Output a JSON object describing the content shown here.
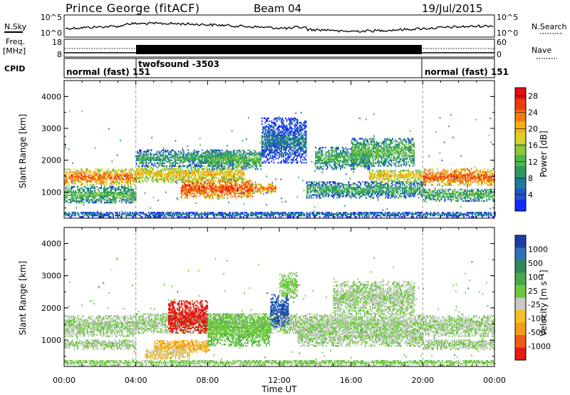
{
  "header": {
    "site": "Prince George (fitACF)",
    "beam": "Beam 04",
    "date": "19/Jul/2015"
  },
  "noise_panel": {
    "left_label": "N.Sky",
    "right_label": "N.Search",
    "left_ticks": [
      "10^5",
      "10^0"
    ],
    "right_ticks": [
      "10^5",
      "10^0"
    ]
  },
  "freq_panel": {
    "left_label_1": "Freq.",
    "left_label_2": "[MHz]",
    "right_label": "Nave",
    "left_ticks": [
      "18",
      "8"
    ],
    "right_ticks": [
      "60",
      "0"
    ]
  },
  "cpid": {
    "label": "CPID",
    "segments": [
      {
        "text": "normal (fast) 151",
        "start_hour": 0,
        "end_hour": 4
      },
      {
        "text": "twofsound -3503",
        "start_hour": 4,
        "end_hour": 20
      },
      {
        "text": "normal (fast) 151",
        "start_hour": 20,
        "end_hour": 24
      }
    ],
    "extra_label": "151"
  },
  "axes": {
    "xlabel": "Time UT",
    "ylabel": "Slant Range [km]",
    "x_ticks": [
      "00:00",
      "04:00",
      "08:00",
      "12:00",
      "16:00",
      "20:00",
      "00:00"
    ],
    "y_ticks": [
      "1000",
      "2000",
      "3000",
      "4000"
    ]
  },
  "colorbars": {
    "power": {
      "label": "Power [dB]",
      "ticks": [
        "4",
        "8",
        "12",
        "16",
        "20",
        "24",
        "28"
      ],
      "colors": [
        "#1428ff",
        "#2255cc",
        "#1e7a9a",
        "#2e9a60",
        "#4bb848",
        "#8ac83a",
        "#d8d22a",
        "#f7b012",
        "#f47c0c",
        "#ee3d0a",
        "#e60f0f"
      ]
    },
    "velocity": {
      "label": "Velocity [m s⁻¹]",
      "ticks": [
        "1000",
        "500",
        "100",
        "25",
        "-25",
        "-100",
        "-500",
        "-1000"
      ],
      "colors": [
        "#1f3da8",
        "#2f72b8",
        "#2e8a5c",
        "#4aa84b",
        "#6cc93e",
        "#c8c8c8",
        "#f2c024",
        "#f59a1a",
        "#ef5a14",
        "#e51a12"
      ]
    }
  },
  "chart_data": [
    {
      "type": "heatmap",
      "title": "Power [dB]",
      "xlabel": "Time UT",
      "ylabel": "Slant Range [km]",
      "xlim": [
        0,
        24
      ],
      "ylim": [
        180,
        4500
      ],
      "colorbar_range": [
        0,
        30
      ],
      "bands": [
        {
          "t0": 0.0,
          "t1": 4.0,
          "r0": 1200,
          "r1": 1700,
          "value": 24
        },
        {
          "t0": 0.0,
          "t1": 4.0,
          "r0": 650,
          "r1": 1150,
          "value": 13
        },
        {
          "t0": 4.0,
          "t1": 10.0,
          "r0": 1300,
          "r1": 1800,
          "value": 20
        },
        {
          "t0": 6.5,
          "t1": 10.5,
          "r0": 800,
          "r1": 1400,
          "value": 26
        },
        {
          "t0": 4.0,
          "t1": 9.5,
          "r0": 1800,
          "r1": 2300,
          "value": 11
        },
        {
          "t0": 8.0,
          "t1": 11.0,
          "r0": 1700,
          "r1": 2300,
          "value": 13
        },
        {
          "t0": 10.5,
          "t1": 11.8,
          "r0": 950,
          "r1": 1250,
          "value": 24
        },
        {
          "t0": 11.0,
          "t1": 13.5,
          "r0": 1900,
          "r1": 3300,
          "value": 7
        },
        {
          "t0": 13.5,
          "t1": 20.0,
          "r0": 800,
          "r1": 1300,
          "value": 11
        },
        {
          "t0": 14.0,
          "t1": 17.0,
          "r0": 1700,
          "r1": 2400,
          "value": 12
        },
        {
          "t0": 16.0,
          "t1": 19.5,
          "r0": 1800,
          "r1": 2700,
          "value": 13
        },
        {
          "t0": 17.0,
          "t1": 20.0,
          "r0": 1300,
          "r1": 1700,
          "value": 20
        },
        {
          "t0": 20.0,
          "t1": 24.0,
          "r0": 1200,
          "r1": 1700,
          "value": 25
        },
        {
          "t0": 20.0,
          "t1": 24.0,
          "r0": 700,
          "r1": 1100,
          "value": 13
        },
        {
          "t0": 0.0,
          "t1": 24.0,
          "r0": 200,
          "r1": 380,
          "value": 7
        }
      ]
    },
    {
      "type": "heatmap",
      "title": "Velocity [m s⁻¹]",
      "xlabel": "Time UT",
      "ylabel": "Slant Range [km]",
      "xlim": [
        0,
        24
      ],
      "ylim": [
        180,
        4500
      ],
      "colorbar_range": [
        -1000,
        1000
      ],
      "bands": [
        {
          "t0": 0.0,
          "t1": 4.0,
          "r0": 1100,
          "r1": 1750,
          "value": 0
        },
        {
          "t0": 0.0,
          "t1": 4.0,
          "r0": 700,
          "r1": 1000,
          "value": 0
        },
        {
          "t0": 4.0,
          "t1": 20.0,
          "r0": 1200,
          "r1": 1800,
          "value": 0
        },
        {
          "t0": 5.8,
          "t1": 8.0,
          "r0": 1200,
          "r1": 2200,
          "value": -900
        },
        {
          "t0": 5.0,
          "t1": 8.0,
          "r0": 600,
          "r1": 1000,
          "value": -400
        },
        {
          "t0": 4.5,
          "t1": 7.0,
          "r0": 400,
          "r1": 700,
          "value": -200
        },
        {
          "t0": 8.0,
          "t1": 11.5,
          "r0": 800,
          "r1": 1800,
          "value": 150
        },
        {
          "t0": 11.5,
          "t1": 12.5,
          "r0": 1400,
          "r1": 2400,
          "value": 800
        },
        {
          "t0": 12.0,
          "t1": 13.0,
          "r0": 2300,
          "r1": 3100,
          "value": 60
        },
        {
          "t0": 13.0,
          "t1": 20.0,
          "r0": 800,
          "r1": 1400,
          "value": 0
        },
        {
          "t0": 15.0,
          "t1": 19.5,
          "r0": 1800,
          "r1": 2800,
          "value": 0
        },
        {
          "t0": 20.0,
          "t1": 24.0,
          "r0": 1100,
          "r1": 1750,
          "value": 0
        },
        {
          "t0": 20.0,
          "t1": 24.0,
          "r0": 700,
          "r1": 1000,
          "value": 0
        },
        {
          "t0": 0.0,
          "t1": 24.0,
          "r0": 200,
          "r1": 380,
          "value": 40
        }
      ]
    }
  ]
}
